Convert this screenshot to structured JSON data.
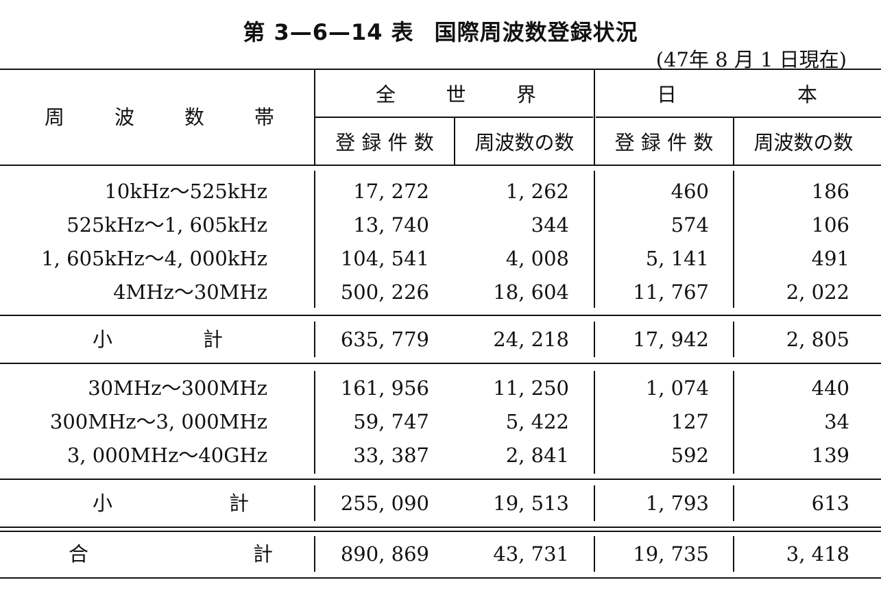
{
  "title": {
    "number": "第 3—6—14 表",
    "text": "国際周波数登録状況"
  },
  "date_note": "(47年 8 月 1 日現在)",
  "headers": {
    "band": [
      "周",
      "波",
      "数",
      "帯"
    ],
    "world": [
      "全",
      "世",
      "界"
    ],
    "japan": [
      "日",
      "本"
    ],
    "registrations": "登 録 件 数",
    "frequencies": "周波数の数"
  },
  "group1": [
    {
      "band": "10kHz〜525kHz",
      "world_reg": "17, 272",
      "world_freq": "1, 262",
      "japan_reg": "460",
      "japan_freq": "186"
    },
    {
      "band": "525kHz〜1, 605kHz",
      "world_reg": "13, 740",
      "world_freq": "344",
      "japan_reg": "574",
      "japan_freq": "106"
    },
    {
      "band": "1, 605kHz〜4, 000kHz",
      "world_reg": "104, 541",
      "world_freq": "4, 008",
      "japan_reg": "5, 141",
      "japan_freq": "491"
    },
    {
      "band": "4MHz〜30MHz",
      "world_reg": "500, 226",
      "world_freq": "18, 604",
      "japan_reg": "11, 767",
      "japan_freq": "2, 022"
    }
  ],
  "subtotal1": {
    "label": [
      "小",
      "計"
    ],
    "world_reg": "635, 779",
    "world_freq": "24, 218",
    "japan_reg": "17, 942",
    "japan_freq": "2, 805"
  },
  "group2": [
    {
      "band": "30MHz〜300MHz",
      "world_reg": "161, 956",
      "world_freq": "11, 250",
      "japan_reg": "1, 074",
      "japan_freq": "440"
    },
    {
      "band": "300MHz〜3, 000MHz",
      "world_reg": "59, 747",
      "world_freq": "5, 422",
      "japan_reg": "127",
      "japan_freq": "34"
    },
    {
      "band": "3, 000MHz〜40GHz",
      "world_reg": "33, 387",
      "world_freq": "2, 841",
      "japan_reg": "592",
      "japan_freq": "139"
    }
  ],
  "subtotal2": {
    "label": [
      "小",
      "計"
    ],
    "world_reg": "255, 090",
    "world_freq": "19, 513",
    "japan_reg": "1, 793",
    "japan_freq": "613"
  },
  "total": {
    "label": [
      "合",
      "計"
    ],
    "world_reg": "890, 869",
    "world_freq": "43, 731",
    "japan_reg": "19, 735",
    "japan_freq": "3, 418"
  }
}
